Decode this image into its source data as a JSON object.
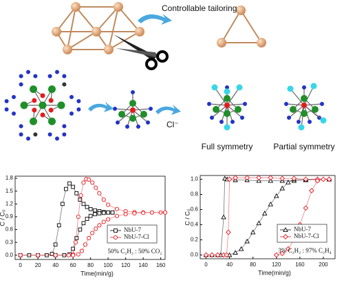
{
  "diagram": {
    "tailoring": "Controllable tailoring",
    "ion": "Cl⁻",
    "full": "Full symmetry",
    "partial": "Partial symmetry"
  },
  "chart_data": [
    {
      "type": "scatter-line",
      "ylabel": "C / C₀",
      "xlabel": "Time(min/g)",
      "annotation": "50% C₂H₂ : 50% CO₂",
      "xlim": [
        -6,
        165
      ],
      "xticks": [
        0,
        20,
        40,
        60,
        80,
        100,
        120,
        140,
        160
      ],
      "ylim": [
        -0.1,
        1.85
      ],
      "yticks": [
        {
          "value": 0,
          "label": "0.0"
        },
        0.3,
        0.6,
        0.9,
        1.2,
        1.5,
        1.8
      ],
      "legend": "lower right",
      "series": [
        {
          "name": "NbU-7",
          "color": "#000000",
          "marker": "square",
          "x": [
            0,
            10,
            20,
            30,
            36,
            40,
            44,
            48,
            52,
            56,
            60,
            64,
            68,
            72,
            76,
            80,
            85,
            90,
            95,
            100,
            105
          ],
          "values": [
            0,
            0,
            0,
            0,
            0.03,
            0.25,
            0.7,
            1.2,
            1.55,
            1.68,
            1.6,
            1.45,
            1.3,
            1.2,
            1.13,
            1.08,
            1.05,
            1.03,
            1.01,
            1.0,
            1.0
          ]
        },
        {
          "color": "#000000",
          "marker": "square",
          "x": [
            40,
            50,
            56,
            60,
            64,
            68,
            72,
            76,
            80,
            85,
            90,
            95,
            100,
            105
          ],
          "values": [
            0,
            0,
            0.02,
            0.15,
            0.4,
            0.6,
            0.75,
            0.85,
            0.92,
            0.96,
            0.98,
            0.99,
            1.0,
            1.0
          ]
        },
        {
          "name": "NbU-7-Cl",
          "color": "#e8141b",
          "marker": "circle",
          "x": [
            0,
            20,
            40,
            55,
            60,
            63,
            66,
            69,
            72,
            75,
            78,
            82,
            86,
            90,
            95,
            100,
            110,
            120,
            130,
            140,
            150,
            160,
            165
          ],
          "values": [
            0,
            0,
            0,
            0,
            0.02,
            0.3,
            0.9,
            1.4,
            1.7,
            1.78,
            1.77,
            1.7,
            1.58,
            1.45,
            1.3,
            1.18,
            1.08,
            1.03,
            1.01,
            1.0,
            1.0,
            1.0,
            1.0
          ]
        },
        {
          "color": "#e8141b",
          "marker": "circle",
          "x": [
            60,
            66,
            70,
            74,
            78,
            82,
            86,
            90,
            95,
            100,
            110,
            120,
            130,
            140,
            150,
            165
          ],
          "values": [
            0,
            0.02,
            0.1,
            0.25,
            0.4,
            0.52,
            0.62,
            0.7,
            0.78,
            0.84,
            0.92,
            0.96,
            0.98,
            0.99,
            1.0,
            1.0
          ]
        }
      ]
    },
    {
      "type": "scatter-line",
      "ylabel": "C / C₀",
      "xlabel": "Time(min/g)",
      "annotation": "3% C₂H₂ : 97% C₂H₄",
      "xlim": [
        -10,
        220
      ],
      "xticks": [
        0,
        40,
        80,
        120,
        160,
        200
      ],
      "ylim": [
        -0.05,
        1.05
      ],
      "yticks": [
        {
          "value": 0,
          "label": "0.0"
        },
        0.2,
        0.4,
        0.6,
        0.8,
        {
          "value": 1,
          "label": "1.0"
        }
      ],
      "legend": "lower right",
      "series": [
        {
          "name": "NbU-7",
          "color": "#000000",
          "marker": "triangle",
          "x": [
            0,
            10,
            20,
            25,
            30,
            32,
            36,
            50,
            70,
            90,
            110,
            130,
            150,
            170,
            190,
            210
          ],
          "values": [
            0,
            0,
            0,
            0,
            0.5,
            1.01,
            1.0,
            0.99,
            0.99,
            0.98,
            0.98,
            0.98,
            0.98,
            0.99,
            1.0,
            1.0
          ]
        },
        {
          "color": "#000000",
          "marker": "triangle",
          "x": [
            40,
            50,
            60,
            70,
            80,
            90,
            100,
            110,
            120,
            130,
            140,
            150,
            170,
            190,
            210
          ],
          "values": [
            0,
            0.03,
            0.08,
            0.18,
            0.3,
            0.42,
            0.55,
            0.67,
            0.78,
            0.88,
            0.96,
            1.0,
            1.0,
            1.0,
            1.0
          ]
        },
        {
          "name": "NbU-7-Cl",
          "color": "#e8141b",
          "marker": "diamond",
          "x": [
            0,
            10,
            20,
            30,
            35,
            38,
            40,
            50,
            70,
            90,
            110,
            130,
            150,
            170,
            190,
            210
          ],
          "values": [
            0,
            0,
            0,
            0,
            0,
            0.3,
            1.0,
            1.02,
            1.02,
            1.02,
            1.02,
            1.01,
            1.01,
            1.0,
            1.0,
            1.0
          ]
        },
        {
          "color": "#e8141b",
          "marker": "diamond",
          "x": [
            120,
            130,
            140,
            150,
            160,
            170,
            180,
            190,
            200,
            210
          ],
          "values": [
            0,
            0.02,
            0.08,
            0.2,
            0.4,
            0.62,
            0.85,
            0.98,
            1.0,
            1.0
          ]
        }
      ]
    }
  ]
}
